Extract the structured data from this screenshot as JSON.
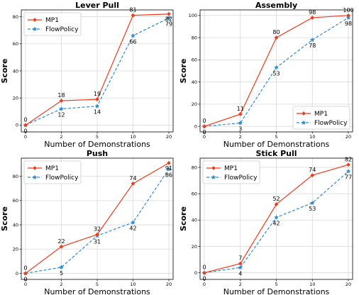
{
  "chart_data": [
    {
      "type": "line",
      "title": "Lever Pull",
      "xlabel": "Number of Demonstrations",
      "ylabel": "Score",
      "categories": [
        "0",
        "2",
        "5",
        "10",
        "20"
      ],
      "ylim": [
        -5,
        85
      ],
      "yticks": [
        0,
        20,
        40,
        60,
        80
      ],
      "grid": true,
      "legend_position": "top-left",
      "series": [
        {
          "name": "MP1",
          "values": [
            0,
            18,
            19,
            81,
            82
          ],
          "labels": [
            "0",
            "18",
            "19",
            "81",
            "82"
          ]
        },
        {
          "name": "FlowPolicy",
          "values": [
            0,
            12,
            14,
            66,
            79
          ],
          "labels": [
            "0",
            "12",
            "14",
            "66",
            "79"
          ]
        }
      ]
    },
    {
      "type": "line",
      "title": "Assembly",
      "xlabel": "Number of Demonstrations",
      "ylabel": "Score",
      "categories": [
        "0",
        "2",
        "5",
        "10",
        "20"
      ],
      "ylim": [
        -5,
        105
      ],
      "yticks": [
        0,
        20,
        40,
        60,
        80,
        100
      ],
      "grid": true,
      "legend_position": "bottom-right",
      "series": [
        {
          "name": "MP1",
          "values": [
            0,
            11,
            80,
            98,
            100
          ],
          "labels": [
            "0",
            "11",
            "80",
            "98",
            "100"
          ]
        },
        {
          "name": "FlowPolicy",
          "values": [
            0,
            3,
            53,
            78,
            98
          ],
          "labels": [
            "0",
            "3",
            "53",
            "78",
            "98"
          ]
        }
      ]
    },
    {
      "type": "line",
      "title": "Push",
      "xlabel": "Number of Demonstrations",
      "ylabel": "Score",
      "categories": [
        "0",
        "2",
        "5",
        "10",
        "20"
      ],
      "ylim": [
        -5,
        95
      ],
      "yticks": [
        0,
        20,
        40,
        60,
        80
      ],
      "grid": true,
      "legend_position": "top-left",
      "series": [
        {
          "name": "MP1",
          "values": [
            0,
            22,
            32,
            74,
            91
          ],
          "labels": [
            "0",
            "22",
            "32",
            "74",
            "91"
          ]
        },
        {
          "name": "FlowPolicy",
          "values": [
            0,
            5,
            31,
            42,
            86
          ],
          "labels": [
            "0",
            "5",
            "31",
            "42",
            "86"
          ]
        }
      ]
    },
    {
      "type": "line",
      "title": "Stick Pull",
      "xlabel": "Number of Demonstrations",
      "ylabel": "Score",
      "categories": [
        "0",
        "2",
        "5",
        "10",
        "20"
      ],
      "ylim": [
        -5,
        87
      ],
      "yticks": [
        0,
        20,
        40,
        60,
        80
      ],
      "grid": true,
      "legend_position": "top-left",
      "series": [
        {
          "name": "MP1",
          "values": [
            0,
            7,
            52,
            74,
            82
          ],
          "labels": [
            "0",
            "7",
            "52",
            "74",
            "82"
          ]
        },
        {
          "name": "FlowPolicy",
          "values": [
            0,
            4,
            42,
            53,
            77
          ],
          "labels": [
            "0",
            "4",
            "42",
            "53",
            "77"
          ]
        }
      ]
    }
  ],
  "colors": {
    "MP1": "#ee3b1c",
    "FlowPolicy": "#2e8bd0",
    "grid": "#d9d9d9",
    "axis": "#000000"
  },
  "markers": {
    "MP1": "diamond",
    "FlowPolicy": "star"
  }
}
